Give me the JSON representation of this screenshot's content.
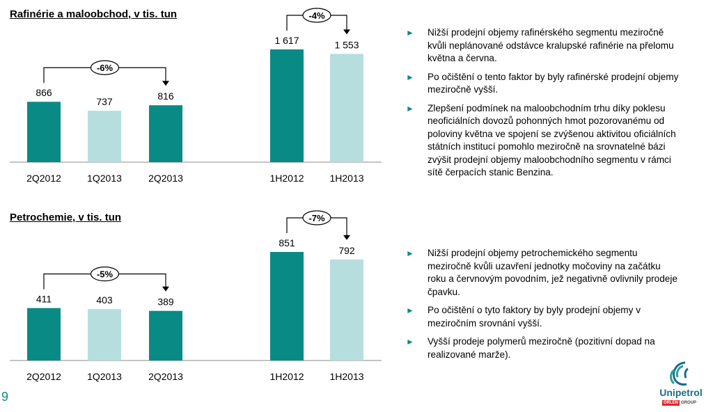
{
  "page_number": "9",
  "logo": {
    "name": "Unipetrol",
    "badge": "ORLEN",
    "badge_suffix": "GROUP"
  },
  "colors": {
    "dark_bar": "#0a8a84",
    "light_bar": "#b7dede",
    "arrow": "#0a8a84"
  },
  "chart_data": [
    {
      "type": "bar",
      "title": "Rafinérie a maloobchod, v tis. tun",
      "groups": [
        {
          "categories": [
            "2Q2012",
            "1Q2013",
            "2Q2013"
          ],
          "values": [
            866,
            737,
            816
          ],
          "value_labels": [
            "866",
            "737",
            "816"
          ],
          "shades": [
            "dark",
            "light",
            "dark"
          ],
          "change": {
            "label": "-6%",
            "from": 0,
            "to": 2
          }
        },
        {
          "categories": [
            "1H2012",
            "1H2013"
          ],
          "values": [
            1617,
            1553
          ],
          "value_labels": [
            "1 617",
            "1 553"
          ],
          "shades": [
            "dark",
            "light"
          ],
          "change": {
            "label": "-4%",
            "from": 0,
            "to": 1
          }
        }
      ]
    },
    {
      "type": "bar",
      "title": "Petrochemie, v tis. tun",
      "groups": [
        {
          "categories": [
            "2Q2012",
            "1Q2013",
            "2Q2013"
          ],
          "values": [
            411,
            403,
            389
          ],
          "value_labels": [
            "411",
            "403",
            "389"
          ],
          "shades": [
            "dark",
            "light",
            "dark"
          ],
          "change": {
            "label": "-5%",
            "from": 0,
            "to": 2
          }
        },
        {
          "categories": [
            "1H2012",
            "1H2013"
          ],
          "values": [
            851,
            792
          ],
          "value_labels": [
            "851",
            "792"
          ],
          "shades": [
            "dark",
            "light"
          ],
          "change": {
            "label": "-7%",
            "from": 0,
            "to": 1
          }
        }
      ]
    }
  ],
  "bullets_refinery": [
    "Nižší prodejní objemy rafinérského segmentu meziročně kvůli neplánované odstávce kralupské rafinérie na přelomu května a června.",
    "Po očištění o tento faktor by byly rafinérské prodejní objemy meziročně vyšší.",
    "Zlepšení podmínek na maloobchodním trhu díky poklesu neoficiálních dovozů pohonných hmot pozorovanému od poloviny května ve spojení se zvýšenou aktivitou oficiálních státních institucí pomohlo meziročně na srovnatelné bázi zvýšit prodejní objemy maloobchodního segmentu v rámci sítě čerpacích stanic Benzina."
  ],
  "bullets_petrochem": [
    "Nižší prodejní objemy petrochemického segmentu meziročně kvůli uzavření jednotky močoviny na začátku roku a červnovým povodním, jež negativně ovlivnily prodeje čpavku.",
    "Po očištění o tyto faktory by byly prodejní objemy v meziročním srovnání vyšší.",
    "Vyšší prodeje polymerů meziročně (pozitivní dopad na realizované marže)."
  ]
}
